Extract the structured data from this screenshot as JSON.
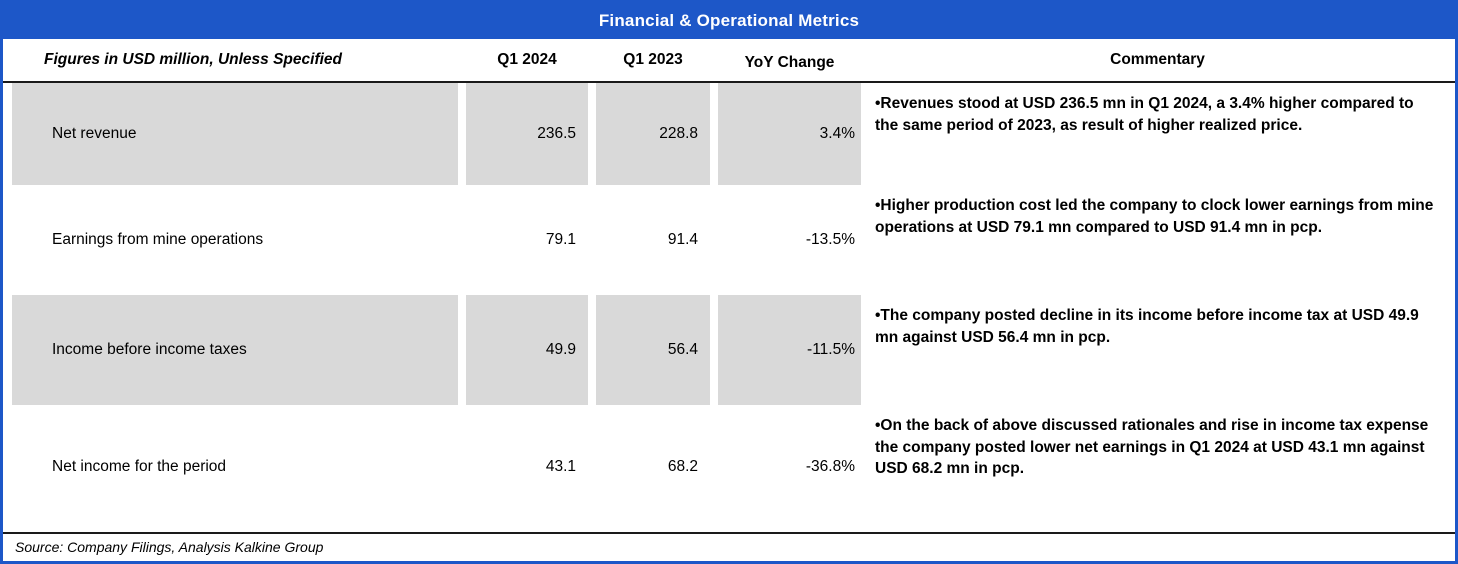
{
  "title": "Financial & Operational Metrics",
  "header": {
    "label": "Figures in USD million, Unless Specified",
    "q1_2024": "Q1 2024",
    "q1_2023": "Q1 2023",
    "yoy": "YoY Change",
    "commentary": "Commentary"
  },
  "rows": [
    {
      "label": "Net revenue",
      "q1_2024": "236.5",
      "q1_2023": "228.8",
      "yoy": "3.4%",
      "commentary": "•Revenues stood at USD 236.5 mn in Q1 2024, a 3.4% higher compared to the same period of 2023, as result of higher realized price."
    },
    {
      "label": "Earnings from mine operations",
      "q1_2024": "79.1",
      "q1_2023": "91.4",
      "yoy": "-13.5%",
      "commentary": "•Higher production cost led the company to clock lower earnings from mine operations at USD 79.1 mn compared to USD 91.4 mn in pcp."
    },
    {
      "label": "Income before income taxes",
      "q1_2024": "49.9",
      "q1_2023": "56.4",
      "yoy": "-11.5%",
      "commentary": "•The company posted decline in its income before income tax at USD 49.9 mn against USD 56.4 mn in pcp."
    },
    {
      "label": "Net income for the period",
      "q1_2024": "43.1",
      "q1_2023": "68.2",
      "yoy": "-36.8%",
      "commentary": "•On the back of above discussed rationales and rise in income tax expense the company posted lower net earnings in Q1 2024 at USD 43.1 mn against USD 68.2 mn in pcp."
    }
  ],
  "footer": {
    "source": "Source: Company Filings, Analysis Kalkine Group"
  },
  "colors": {
    "accent_blue": "#1d57c8",
    "shaded_grey": "#d9d9d9"
  }
}
